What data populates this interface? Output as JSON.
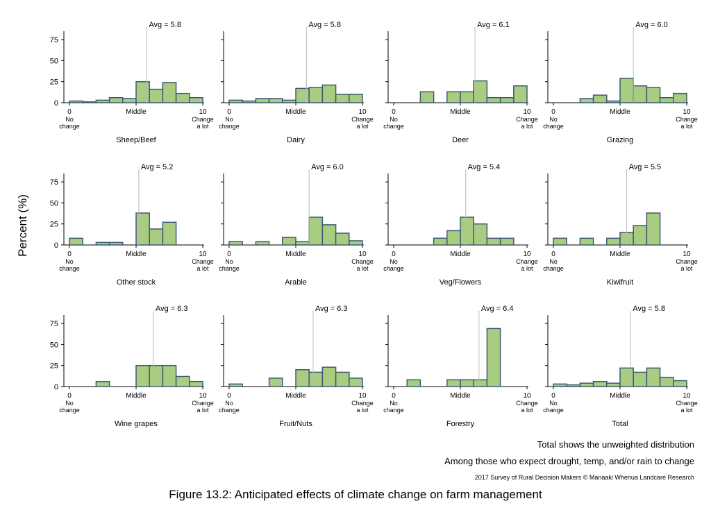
{
  "figure": {
    "ylabel": "Percent (%)",
    "caption": "Figure 13.2: Anticipated effects of climate change on farm management",
    "notes": [
      "Total shows the unweighted distribution",
      "Among those who expect drought, temp, and/or rain to change"
    ],
    "credit": "2017 Survey of Rural Decision Makers © Manaaki Whenua Landcare Research",
    "colors": {
      "bar_fill": "#a8cd80",
      "bar_stroke": "#3e5a73",
      "avg_line": "#bbbbbb",
      "axis": "#000000"
    }
  },
  "chart_data": [
    {
      "type": "bar",
      "title": "Sheep/Beef",
      "avg_label": "Avg = 5.8",
      "avg": 5.8,
      "ylim": [
        0,
        85
      ],
      "yticks": [
        0,
        25,
        50,
        75
      ],
      "xlim": [
        0,
        10
      ],
      "xticks": [
        {
          "x": 0,
          "label": "0"
        },
        {
          "x": 5,
          "label": "Middle"
        },
        {
          "x": 10,
          "label": "10"
        }
      ],
      "xnotes": {
        "left": [
          "No",
          "change"
        ],
        "right": [
          "Change",
          "a lot"
        ]
      },
      "bins": [
        0,
        1,
        2,
        3,
        4,
        5,
        6,
        7,
        8,
        9
      ],
      "values": [
        2,
        1,
        3,
        6,
        5,
        25,
        16,
        24,
        11,
        6
      ]
    },
    {
      "type": "bar",
      "title": "Dairy",
      "avg_label": "Avg = 5.8",
      "avg": 5.8,
      "ylim": [
        0,
        85
      ],
      "yticks": [
        0,
        25,
        50,
        75
      ],
      "xlim": [
        0,
        10
      ],
      "xticks": [
        {
          "x": 0,
          "label": "0"
        },
        {
          "x": 5,
          "label": "Middle"
        },
        {
          "x": 10,
          "label": "10"
        }
      ],
      "xnotes": {
        "left": [
          "No",
          "change"
        ],
        "right": [
          "Change",
          "a lot"
        ]
      },
      "bins": [
        0,
        1,
        2,
        3,
        4,
        5,
        6,
        7,
        8,
        9
      ],
      "values": [
        3,
        2,
        5,
        5,
        3,
        17,
        18,
        21,
        10,
        10
      ]
    },
    {
      "type": "bar",
      "title": "Deer",
      "avg_label": "Avg = 6.1",
      "avg": 6.1,
      "ylim": [
        0,
        85
      ],
      "yticks": [
        0,
        25,
        50,
        75
      ],
      "xlim": [
        0,
        10
      ],
      "xticks": [
        {
          "x": 0,
          "label": "0"
        },
        {
          "x": 5,
          "label": "Middle"
        },
        {
          "x": 10,
          "label": "10"
        }
      ],
      "xnotes": {
        "left": [
          "No",
          "change"
        ],
        "right": [
          "Change",
          "a lot"
        ]
      },
      "bins": [
        0,
        1,
        2,
        3,
        4,
        5,
        6,
        7,
        8,
        9
      ],
      "values": [
        0,
        0,
        13,
        0,
        13,
        13,
        26,
        6,
        6,
        20
      ]
    },
    {
      "type": "bar",
      "title": "Grazing",
      "avg_label": "Avg = 6.0",
      "avg": 6.0,
      "ylim": [
        0,
        85
      ],
      "yticks": [
        0,
        25,
        50,
        75
      ],
      "xlim": [
        0,
        10
      ],
      "xticks": [
        {
          "x": 0,
          "label": "0"
        },
        {
          "x": 5,
          "label": "Middle"
        },
        {
          "x": 10,
          "label": "10"
        }
      ],
      "xnotes": {
        "left": [
          "No",
          "change"
        ],
        "right": [
          "Change",
          "a lot"
        ]
      },
      "bins": [
        0,
        1,
        2,
        3,
        4,
        5,
        6,
        7,
        8,
        9
      ],
      "values": [
        0,
        0,
        5,
        9,
        2,
        29,
        20,
        18,
        6,
        11
      ]
    },
    {
      "type": "bar",
      "title": "Other stock",
      "avg_label": "Avg = 5.2",
      "avg": 5.2,
      "ylim": [
        0,
        85
      ],
      "yticks": [
        0,
        25,
        50,
        75
      ],
      "xlim": [
        0,
        10
      ],
      "xticks": [
        {
          "x": 0,
          "label": "0"
        },
        {
          "x": 5,
          "label": "Middle"
        },
        {
          "x": 10,
          "label": "10"
        }
      ],
      "xnotes": {
        "left": [
          "No",
          "change"
        ],
        "right": [
          "Change",
          "a lot"
        ]
      },
      "bins": [
        0,
        1,
        2,
        3,
        4,
        5,
        6,
        7,
        8,
        9
      ],
      "values": [
        8,
        0,
        3,
        3,
        0,
        38,
        19,
        27,
        0,
        0
      ]
    },
    {
      "type": "bar",
      "title": "Arable",
      "avg_label": "Avg = 6.0",
      "avg": 6.0,
      "ylim": [
        0,
        85
      ],
      "yticks": [
        0,
        25,
        50,
        75
      ],
      "xlim": [
        0,
        10
      ],
      "xticks": [
        {
          "x": 0,
          "label": "0"
        },
        {
          "x": 5,
          "label": "Middle"
        },
        {
          "x": 10,
          "label": "10"
        }
      ],
      "xnotes": {
        "left": [
          "No",
          "change"
        ],
        "right": [
          "Change",
          "a lot"
        ]
      },
      "bins": [
        0,
        1,
        2,
        3,
        4,
        5,
        6,
        7,
        8,
        9
      ],
      "values": [
        4,
        0,
        4,
        0,
        9,
        4,
        33,
        24,
        14,
        5
      ]
    },
    {
      "type": "bar",
      "title": "Veg/Flowers",
      "avg_label": "Avg = 5.4",
      "avg": 5.4,
      "ylim": [
        0,
        85
      ],
      "yticks": [
        0,
        25,
        50,
        75
      ],
      "xlim": [
        0,
        10
      ],
      "xticks": [
        {
          "x": 0,
          "label": "0"
        },
        {
          "x": 5,
          "label": "Middle"
        },
        {
          "x": 10,
          "label": "10"
        }
      ],
      "xnotes": {
        "left": [
          "No",
          "change"
        ],
        "right": [
          "Change",
          "a lot"
        ]
      },
      "bins": [
        0,
        1,
        2,
        3,
        4,
        5,
        6,
        7,
        8,
        9
      ],
      "values": [
        0,
        0,
        0,
        8,
        17,
        33,
        25,
        8,
        8,
        0
      ]
    },
    {
      "type": "bar",
      "title": "Kiwifruit",
      "avg_label": "Avg = 5.5",
      "avg": 5.5,
      "ylim": [
        0,
        85
      ],
      "yticks": [
        0,
        25,
        50,
        75
      ],
      "xlim": [
        0,
        10
      ],
      "xticks": [
        {
          "x": 0,
          "label": "0"
        },
        {
          "x": 5,
          "label": "Middle"
        },
        {
          "x": 10,
          "label": "10"
        }
      ],
      "xnotes": {
        "left": [
          "No",
          "change"
        ],
        "right": [
          "Change",
          "a lot"
        ]
      },
      "bins": [
        0,
        1,
        2,
        3,
        4,
        5,
        6,
        7,
        8,
        9
      ],
      "values": [
        8,
        0,
        8,
        0,
        8,
        15,
        23,
        38,
        0,
        0
      ]
    },
    {
      "type": "bar",
      "title": "Wine grapes",
      "avg_label": "Avg = 6.3",
      "avg": 6.3,
      "ylim": [
        0,
        85
      ],
      "yticks": [
        0,
        25,
        50,
        75
      ],
      "xlim": [
        0,
        10
      ],
      "xticks": [
        {
          "x": 0,
          "label": "0"
        },
        {
          "x": 5,
          "label": "Middle"
        },
        {
          "x": 10,
          "label": "10"
        }
      ],
      "xnotes": {
        "left": [
          "No",
          "change"
        ],
        "right": [
          "Change",
          "a lot"
        ]
      },
      "bins": [
        0,
        1,
        2,
        3,
        4,
        5,
        6,
        7,
        8,
        9
      ],
      "values": [
        0,
        0,
        6,
        0,
        0,
        25,
        25,
        25,
        12,
        6
      ]
    },
    {
      "type": "bar",
      "title": "Fruit/Nuts",
      "avg_label": "Avg = 6.3",
      "avg": 6.3,
      "ylim": [
        0,
        85
      ],
      "yticks": [
        0,
        25,
        50,
        75
      ],
      "xlim": [
        0,
        10
      ],
      "xticks": [
        {
          "x": 0,
          "label": "0"
        },
        {
          "x": 5,
          "label": "Middle"
        },
        {
          "x": 10,
          "label": "10"
        }
      ],
      "xnotes": {
        "left": [
          "No",
          "change"
        ],
        "right": [
          "Change",
          "a lot"
        ]
      },
      "bins": [
        0,
        1,
        2,
        3,
        4,
        5,
        6,
        7,
        8,
        9
      ],
      "values": [
        3,
        0,
        0,
        10,
        0,
        20,
        17,
        23,
        17,
        10
      ]
    },
    {
      "type": "bar",
      "title": "Forestry",
      "avg_label": "Avg = 6.4",
      "avg": 6.4,
      "ylim": [
        0,
        85
      ],
      "yticks": [
        0,
        25,
        50,
        75
      ],
      "xlim": [
        0,
        10
      ],
      "xticks": [
        {
          "x": 0,
          "label": "0"
        },
        {
          "x": 5,
          "label": "Middle"
        },
        {
          "x": 10,
          "label": "10"
        }
      ],
      "xnotes": {
        "left": [
          "No",
          "change"
        ],
        "right": [
          "Change",
          "a lot"
        ]
      },
      "bins": [
        0,
        1,
        2,
        3,
        4,
        5,
        6,
        7,
        8,
        9
      ],
      "values": [
        0,
        8,
        0,
        0,
        8,
        8,
        8,
        69,
        0,
        0
      ]
    },
    {
      "type": "bar",
      "title": "Total",
      "avg_label": "Avg = 5.8",
      "avg": 5.8,
      "ylim": [
        0,
        85
      ],
      "yticks": [
        0,
        25,
        50,
        75
      ],
      "xlim": [
        0,
        10
      ],
      "xticks": [
        {
          "x": 0,
          "label": "0"
        },
        {
          "x": 5,
          "label": "Middle"
        },
        {
          "x": 10,
          "label": "10"
        }
      ],
      "xnotes": {
        "left": [
          "No",
          "change"
        ],
        "right": [
          "Change",
          "a lot"
        ]
      },
      "bins": [
        0,
        1,
        2,
        3,
        4,
        5,
        6,
        7,
        8,
        9
      ],
      "values": [
        3,
        2,
        4,
        6,
        4,
        22,
        17,
        22,
        11,
        7
      ]
    }
  ]
}
